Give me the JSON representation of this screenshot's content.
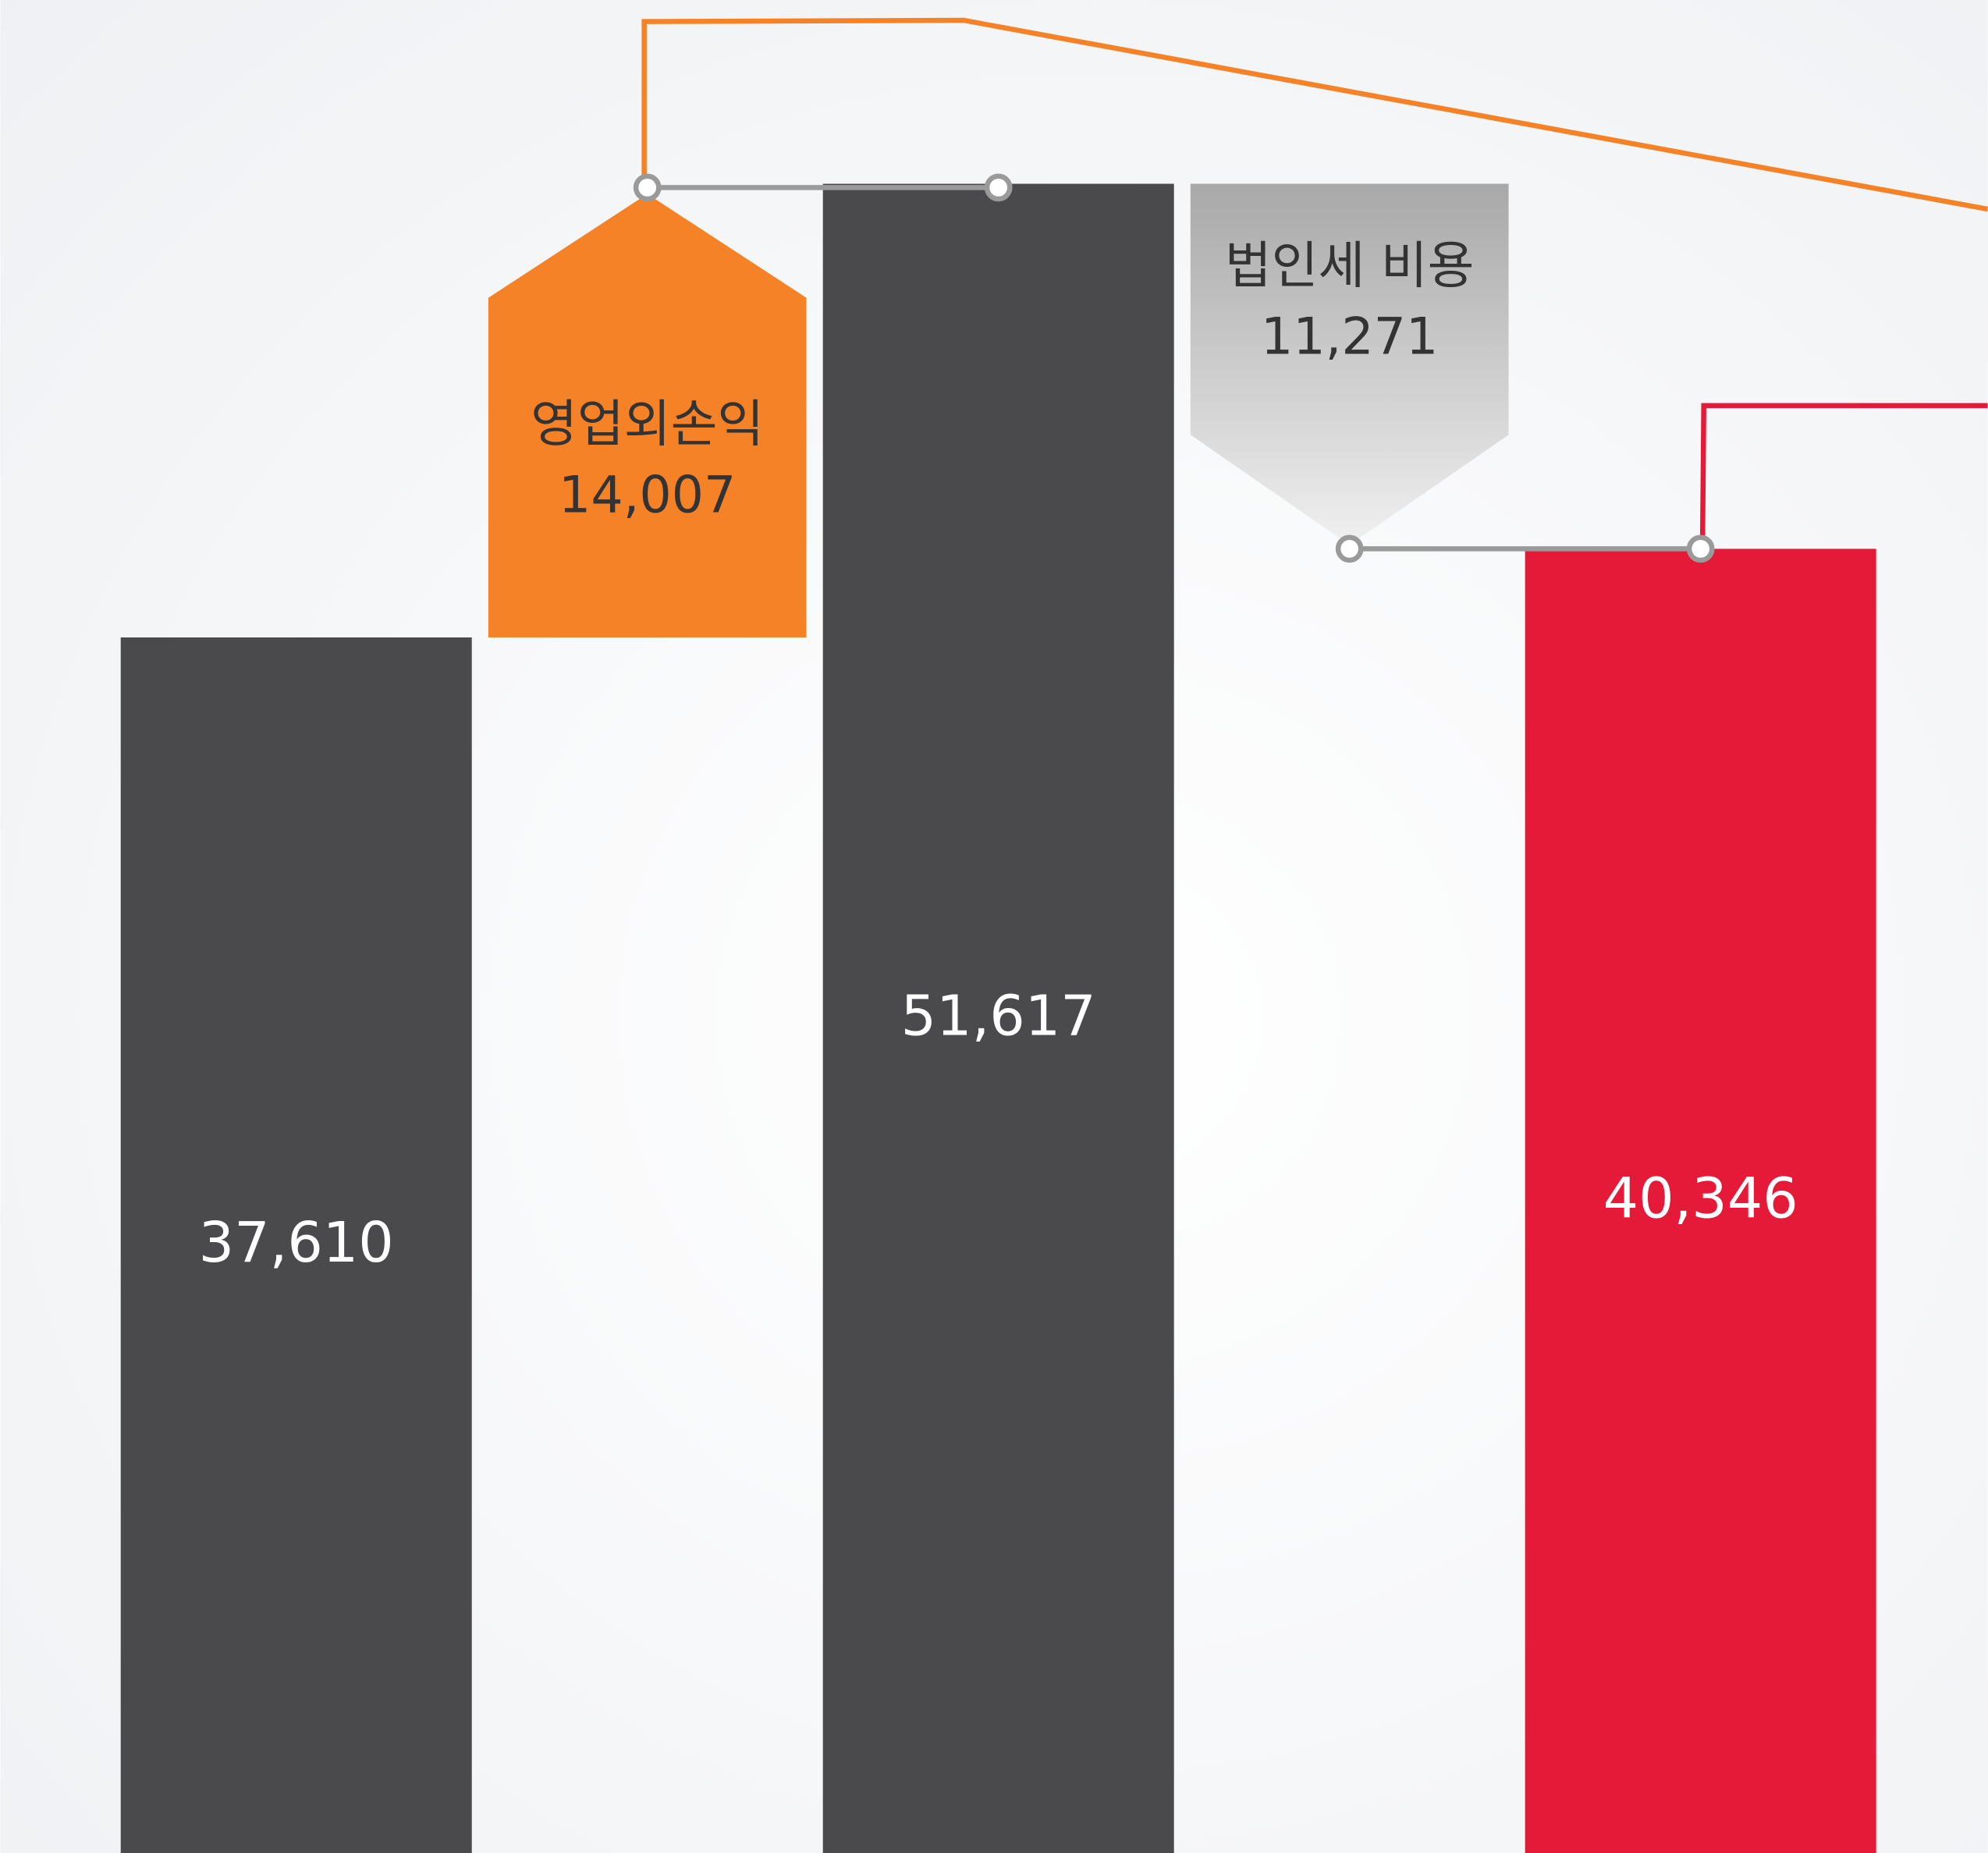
{
  "chart_data": {
    "type": "waterfall",
    "categories": [
      null,
      "영업외손익",
      null,
      "법인세 비용",
      null
    ],
    "values": [
      37610,
      14007,
      51617,
      11271,
      40346
    ],
    "value_labels": [
      "37,610",
      "14,007",
      "51,617",
      "11,271",
      "40,346"
    ],
    "kinds": [
      "total",
      "increase",
      "total",
      "decrease",
      "total"
    ],
    "colors": [
      "#4a4a4c",
      "#f58227",
      "#4a4a4c",
      "#b4b4b4",
      "#e51a39"
    ]
  }
}
